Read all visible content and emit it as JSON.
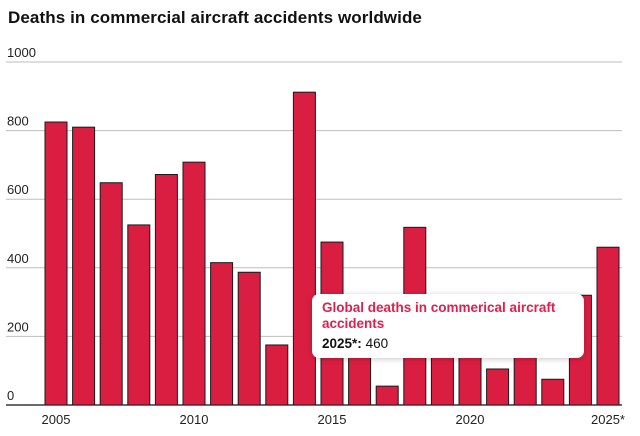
{
  "chart_data": {
    "type": "bar",
    "title": "Deaths in commercial aircraft accidents worldwide",
    "xlabel": "",
    "ylabel": "",
    "ylim": [
      0,
      1000
    ],
    "yticks": [
      0,
      200,
      400,
      600,
      800,
      1000
    ],
    "xtick_labels": [
      "2005",
      "2010",
      "2015",
      "2020",
      "2025*"
    ],
    "xtick_positions": [
      "2005",
      "2010",
      "2015",
      "2020",
      "2025*"
    ],
    "categories": [
      "2005",
      "2006",
      "2007",
      "2008",
      "2009",
      "2010",
      "2011",
      "2012",
      "2013",
      "2014",
      "2015",
      "2016",
      "2017",
      "2018",
      "2019",
      "2020",
      "2021",
      "2022",
      "2023",
      "2024",
      "2025*"
    ],
    "values": [
      825,
      810,
      648,
      525,
      672,
      708,
      415,
      387,
      175,
      912,
      475,
      320,
      55,
      518,
      300,
      290,
      105,
      230,
      75,
      320,
      460
    ],
    "bar_color": "#d91e41",
    "tooltip": {
      "title": "Global deaths in commerical aircraft accidents",
      "year_label": "2025*:",
      "value": "460"
    }
  }
}
